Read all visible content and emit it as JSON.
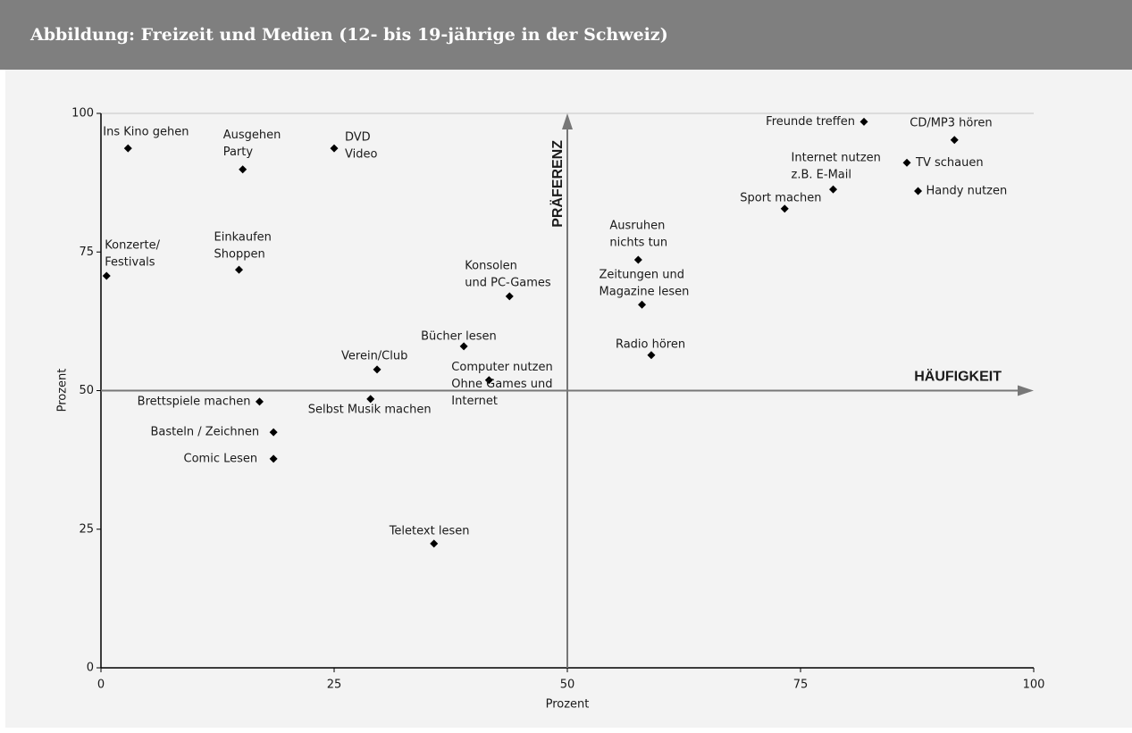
{
  "chart_data": {
    "type": "scatter",
    "title": "Abbildung: Freizeit und Medien (12- bis 19-jährige in der Schweiz)",
    "x_label": "Prozent",
    "y_label": "Prozent",
    "color": "#000000",
    "xlim": [
      0,
      100
    ],
    "ylim": [
      0,
      100
    ],
    "xticks": [
      0,
      25,
      50,
      75,
      100
    ],
    "yticks": [
      0,
      25,
      50,
      75,
      100
    ],
    "quadrant_x": 50,
    "quadrant_y": 50,
    "quadrant_x_label": "HÄUFIGKEIT",
    "quadrant_y_label": "PRÄFERENZ",
    "labels": [
      [
        "Ins Kino gehen"
      ],
      [
        "Konzerte/",
        "Festivals"
      ],
      [
        "Ausgehen",
        "Party"
      ],
      [
        "DVD",
        "Video"
      ],
      [
        "Einkaufen",
        "Shoppen"
      ],
      [
        "Konsolen",
        "und PC-Games"
      ],
      [
        "Bücher lesen"
      ],
      [
        "Verein/Club"
      ],
      [
        "Computer nutzen",
        "Ohne Games und",
        "Internet"
      ],
      [
        "Selbst Musik machen"
      ],
      [
        "Brettspiele machen"
      ],
      [
        "Basteln / Zeichnen"
      ],
      [
        "Comic Lesen"
      ],
      [
        "Teletext lesen"
      ],
      [
        "Ausruhen",
        "nichts tun"
      ],
      [
        "Zeitungen und",
        "Magazine lesen"
      ],
      [
        "Radio hören"
      ],
      [
        "Freunde treffen"
      ],
      [
        "CD/MP3 hören"
      ],
      [
        "Internet nutzen",
        "z.B. E-Mail"
      ],
      [
        "TV schauen"
      ],
      [
        "Handy nutzen"
      ],
      [
        "Sport machen"
      ]
    ],
    "x": [
      2.9,
      0.6,
      15.2,
      25.0,
      14.8,
      43.8,
      38.9,
      29.6,
      41.6,
      28.9,
      17.0,
      18.5,
      18.5,
      35.7,
      57.6,
      58.0,
      59.0,
      81.8,
      91.5,
      78.5,
      86.4,
      87.6,
      73.3
    ],
    "y": [
      93.7,
      70.7,
      89.9,
      93.7,
      71.8,
      67.0,
      58.0,
      53.8,
      51.9,
      48.5,
      48.0,
      42.5,
      37.7,
      22.4,
      73.6,
      65.5,
      56.4,
      98.5,
      95.2,
      86.3,
      91.1,
      86.0,
      82.8
    ]
  }
}
